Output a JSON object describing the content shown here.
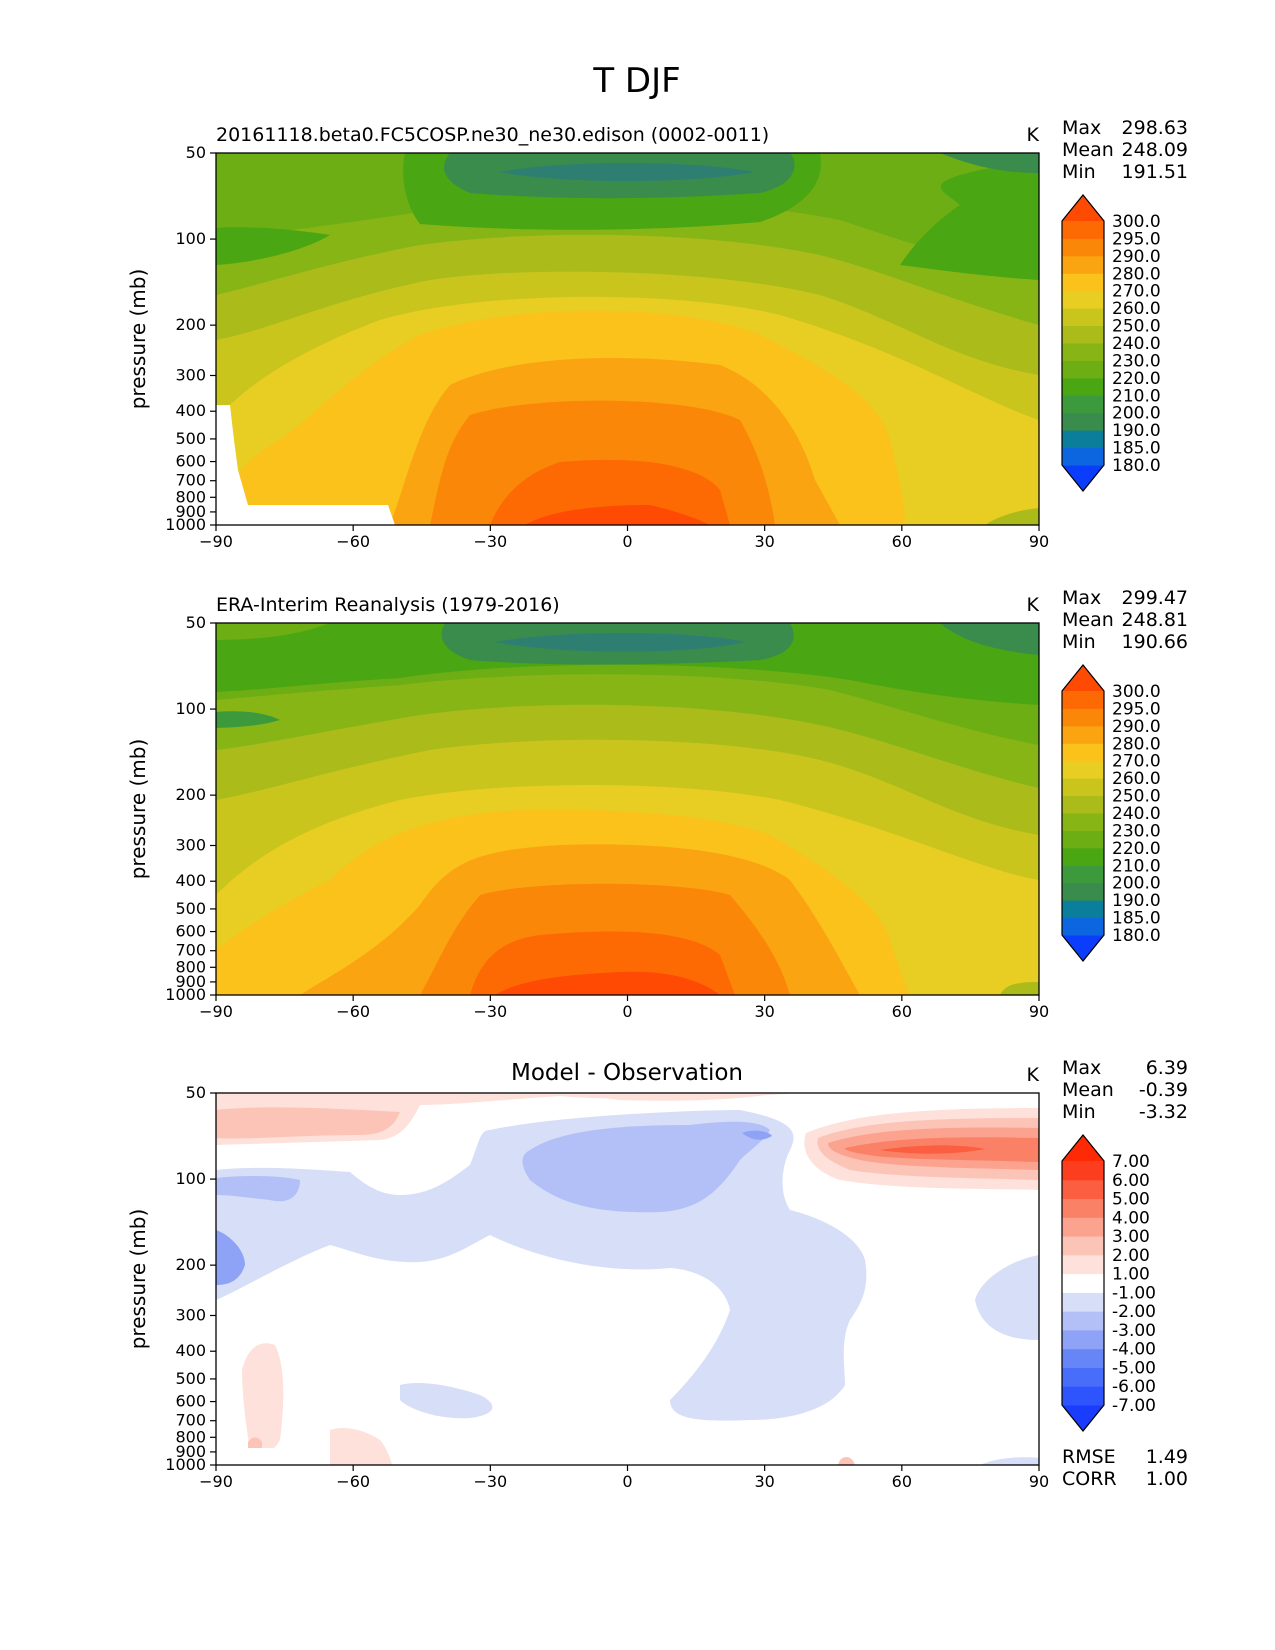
{
  "figure": {
    "title": "T DJF"
  },
  "chart_data": [
    {
      "type": "heatmap",
      "title": "20161118.beta0.FC5COSP.ne30_ne30.edison (0002-0011)",
      "units": "K",
      "stats": [
        {
          "label": "Max",
          "value": "298.63"
        },
        {
          "label": "Mean",
          "value": "248.09"
        },
        {
          "label": "Min",
          "value": "191.51"
        }
      ],
      "ylabel": "pressure (mb)",
      "xlabel": "",
      "x_ticks": [
        "−90",
        "−60",
        "−30",
        "0",
        "30",
        "60",
        "90"
      ],
      "y_ticks": [
        "50",
        "100",
        "200",
        "300",
        "400",
        "500",
        "600",
        "700",
        "800",
        "900",
        "1000"
      ],
      "xlim": [
        -90,
        90
      ],
      "ylim": [
        1000,
        50
      ],
      "levels": [
        "180.0",
        "185.0",
        "190.0",
        "200.0",
        "210.0",
        "220.0",
        "230.0",
        "240.0",
        "250.0",
        "260.0",
        "270.0",
        "280.0",
        "290.0",
        "295.0",
        "300.0"
      ],
      "colorbar_colors": [
        "#0b3dfd",
        "#0b66e0",
        "#0b7e9c",
        "#3a8c4c",
        "#3c9a3c",
        "#4aa612",
        "#6cae13",
        "#87b515",
        "#aabb1a",
        "#c9c51d",
        "#e8cd22",
        "#fbc21c",
        "#fba411",
        "#fb8709",
        "#fd6a03",
        "#fe4a03"
      ],
      "colorbar_extend": "both",
      "field_note": "zonal-mean temperature vs latitude and pressure; warmest (~295-300 K) near surface at equator, coldest (~190 K) near 100 mb over tropics",
      "missing_region": "white (below surface) south of 50S near 700-1000 mb"
    },
    {
      "type": "heatmap",
      "title": "ERA-Interim Reanalysis (1979-2016)",
      "units": "K",
      "stats": [
        {
          "label": "Max",
          "value": "299.47"
        },
        {
          "label": "Mean",
          "value": "248.81"
        },
        {
          "label": "Min",
          "value": "190.66"
        }
      ],
      "ylabel": "pressure (mb)",
      "xlabel": "",
      "x_ticks": [
        "−90",
        "−60",
        "−30",
        "0",
        "30",
        "60",
        "90"
      ],
      "y_ticks": [
        "50",
        "100",
        "200",
        "300",
        "400",
        "500",
        "600",
        "700",
        "800",
        "900",
        "1000"
      ],
      "xlim": [
        -90,
        90
      ],
      "ylim": [
        1000,
        50
      ],
      "levels": [
        "180.0",
        "185.0",
        "190.0",
        "200.0",
        "210.0",
        "220.0",
        "230.0",
        "240.0",
        "250.0",
        "260.0",
        "270.0",
        "280.0",
        "290.0",
        "295.0",
        "300.0"
      ],
      "colorbar_colors": [
        "#0b3dfd",
        "#0b66e0",
        "#0b7e9c",
        "#3a8c4c",
        "#3c9a3c",
        "#4aa612",
        "#6cae13",
        "#87b515",
        "#aabb1a",
        "#c9c51d",
        "#e8cd22",
        "#fbc21c",
        "#fba411",
        "#fb8709",
        "#fd6a03",
        "#fe4a03"
      ],
      "colorbar_extend": "both"
    },
    {
      "type": "heatmap",
      "title": "Model - Observation",
      "units": "K",
      "stats": [
        {
          "label": "Max",
          "value": "6.39"
        },
        {
          "label": "Mean",
          "value": "-0.39"
        },
        {
          "label": "Min",
          "value": "-3.32"
        }
      ],
      "footer_stats": [
        {
          "label": "RMSE",
          "value": "1.49"
        },
        {
          "label": "CORR",
          "value": "1.00"
        }
      ],
      "ylabel": "pressure (mb)",
      "xlabel": "",
      "x_ticks": [
        "−90",
        "−60",
        "−30",
        "0",
        "30",
        "60",
        "90"
      ],
      "y_ticks": [
        "50",
        "100",
        "200",
        "300",
        "400",
        "500",
        "600",
        "700",
        "800",
        "900",
        "1000"
      ],
      "xlim": [
        -90,
        90
      ],
      "ylim": [
        1000,
        50
      ],
      "levels": [
        "-7.00",
        "-6.00",
        "-5.00",
        "-4.00",
        "-3.00",
        "-2.00",
        "-1.00",
        "1.00",
        "2.00",
        "3.00",
        "4.00",
        "5.00",
        "6.00",
        "7.00"
      ],
      "colorbar_colors": [
        "#1a3cfd",
        "#2e55fd",
        "#486dfb",
        "#6686f8",
        "#8ea3f6",
        "#b3c0f8",
        "#d6def8",
        "#ffffff",
        "#fde1da",
        "#fcc4b7",
        "#fca390",
        "#fb8166",
        "#fb5e40",
        "#fc3e1e",
        "#fd2a05"
      ],
      "colorbar_extend": "both"
    }
  ]
}
